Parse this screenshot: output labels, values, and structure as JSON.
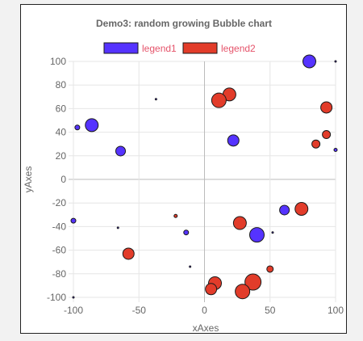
{
  "chart_data": {
    "type": "scatter",
    "subtype": "bubble",
    "title": "Demo3: random growing Bubble chart",
    "xlabel": "xAxes",
    "ylabel": "yAxes",
    "xlim": [
      -100,
      100
    ],
    "ylim": [
      -100,
      100
    ],
    "x_ticks": [
      "-100",
      "-50",
      "0",
      "50",
      "100"
    ],
    "y_ticks": [
      "100",
      "80",
      "60",
      "40",
      "20",
      "0",
      "-20",
      "-40",
      "-60",
      "-80",
      "-100"
    ],
    "grid": true,
    "legend_position": "top",
    "series": [
      {
        "name": "legend1",
        "fill": "#5533ff",
        "stroke": "#1a1a1a",
        "points": [
          {
            "x": 80,
            "y": 100,
            "r": 8
          },
          {
            "x": -97,
            "y": 44,
            "r": 3
          },
          {
            "x": -86,
            "y": 46,
            "r": 8
          },
          {
            "x": -64,
            "y": 24,
            "r": 6
          },
          {
            "x": 22,
            "y": 33,
            "r": 7
          },
          {
            "x": 100,
            "y": 25,
            "r": 2
          },
          {
            "x": 61,
            "y": -26,
            "r": 6
          },
          {
            "x": -100,
            "y": -35,
            "r": 3
          },
          {
            "x": -14,
            "y": -45,
            "r": 3
          },
          {
            "x": 40,
            "y": -47,
            "r": 9
          },
          {
            "x": -37,
            "y": 68,
            "r": 1
          },
          {
            "x": -66,
            "y": -41,
            "r": 1
          },
          {
            "x": -11,
            "y": -74,
            "r": 1
          },
          {
            "x": 52,
            "y": -45,
            "r": 1
          },
          {
            "x": 100,
            "y": 100,
            "r": 1
          },
          {
            "x": -100,
            "y": -100,
            "r": 1
          }
        ]
      },
      {
        "name": "legend2",
        "fill": "#e23c2a",
        "stroke": "#1a1a1a",
        "points": [
          {
            "x": 19,
            "y": 72,
            "r": 8
          },
          {
            "x": 11,
            "y": 67,
            "r": 9
          },
          {
            "x": 93,
            "y": 61,
            "r": 7
          },
          {
            "x": 93,
            "y": 38,
            "r": 5
          },
          {
            "x": 85,
            "y": 30,
            "r": 5
          },
          {
            "x": 74,
            "y": -25,
            "r": 8
          },
          {
            "x": 27,
            "y": -37,
            "r": 8
          },
          {
            "x": -58,
            "y": -63,
            "r": 7
          },
          {
            "x": 50,
            "y": -76,
            "r": 4
          },
          {
            "x": -22,
            "y": -31,
            "r": 2
          },
          {
            "x": 37,
            "y": -87,
            "r": 10
          },
          {
            "x": 29,
            "y": -95,
            "r": 9
          },
          {
            "x": 8,
            "y": -88,
            "r": 8
          },
          {
            "x": 5,
            "y": -93,
            "r": 7
          }
        ]
      }
    ]
  }
}
